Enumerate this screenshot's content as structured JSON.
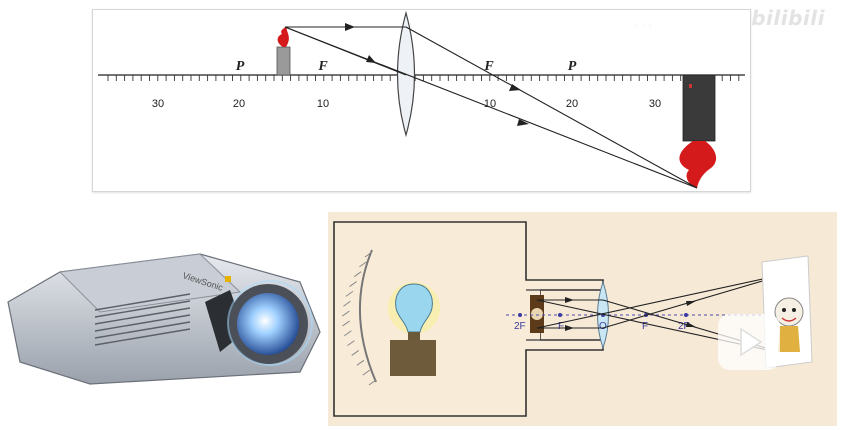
{
  "top_diagram": {
    "axis_ticks_left": [
      "30",
      "20",
      "10"
    ],
    "axis_ticks_right": [
      "10",
      "20",
      "30"
    ],
    "left_labels": [
      "P",
      "F"
    ],
    "right_labels": [
      "F",
      "P"
    ]
  },
  "bottom_diagram": {
    "axis_labels_left": [
      "2F",
      "F"
    ],
    "center_label": "O",
    "axis_labels_right": [
      "F",
      "2F"
    ]
  },
  "projector": {
    "brand": "ViewSonic"
  },
  "watermark": {
    "site": "bilibili"
  },
  "colors": {
    "ray": "#222222",
    "lens": "#e8eef4",
    "panel_bg": "#f6e9d6",
    "bulb": "#9ad7ef",
    "flame": "#d41a1a"
  },
  "icons": {
    "play": "play-icon"
  }
}
